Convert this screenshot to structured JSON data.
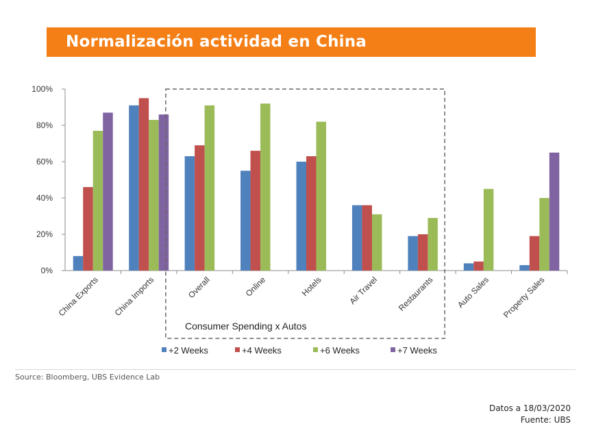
{
  "slide": {
    "title": "Normalización actividad en China",
    "source": "Source: Bloomberg, UBS Evidence Lab",
    "footer_date": "Datos a 18/03/2020",
    "footer_source": "Fuente: UBS"
  },
  "chart_data": {
    "type": "bar",
    "categories": [
      "China Exports",
      "China Imports",
      "Overall",
      "Online",
      "Hotels",
      "Air Travel",
      "Restaurants",
      "Auto Sales",
      "Property Sales"
    ],
    "series": [
      {
        "name": "+2 Weeks",
        "color": "#4f81bd",
        "values": [
          8,
          91,
          63,
          55,
          60,
          36,
          19,
          4,
          3
        ]
      },
      {
        "name": "+4 Weeks",
        "color": "#c0504d",
        "values": [
          46,
          95,
          69,
          66,
          63,
          36,
          20,
          5,
          19
        ]
      },
      {
        "name": "+6 Weeks",
        "color": "#9bbb59",
        "values": [
          77,
          83,
          91,
          92,
          82,
          31,
          29,
          45,
          40
        ]
      },
      {
        "name": "+7 Weeks",
        "color": "#8064a2",
        "values": [
          87,
          86,
          null,
          null,
          null,
          null,
          null,
          null,
          65
        ]
      }
    ],
    "yticks": [
      "0%",
      "20%",
      "40%",
      "60%",
      "80%",
      "100%"
    ],
    "ylim": [
      0,
      100
    ],
    "group_annotation": "Consumer Spending x Autos",
    "legend_position": "bottom",
    "grid": false
  }
}
